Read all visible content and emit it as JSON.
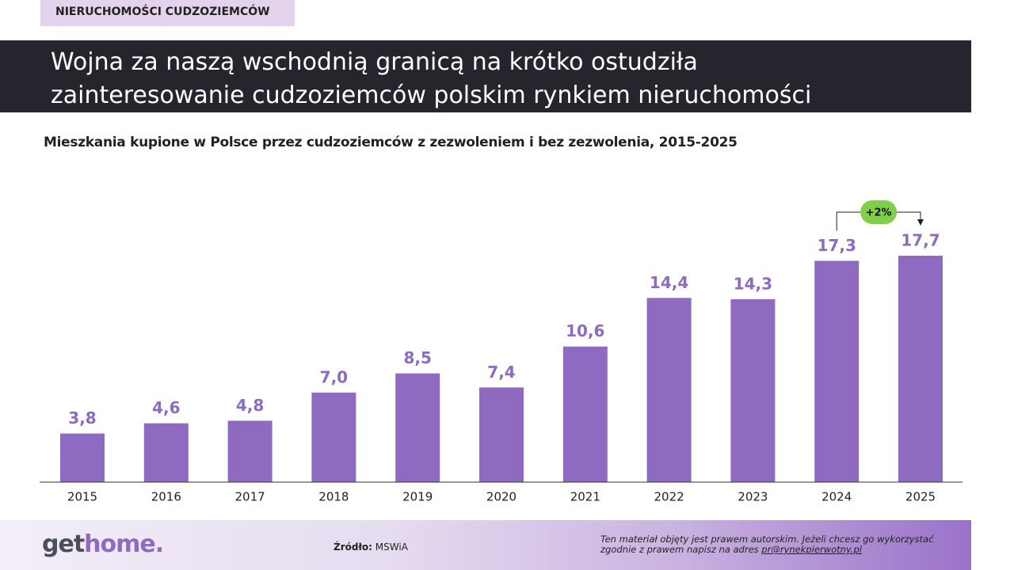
{
  "header": {
    "tag": "NIERUCHOMOŚCI CUDZOZIEMCÓW",
    "title_lines": [
      "Wojna za naszą wschodnią granicą na krótko ostudziła",
      "zainteresowanie cudzoziemców polskim rynkiem nieruchomości"
    ]
  },
  "chart_data": {
    "type": "bar",
    "title": "Mieszkania kupione w Polsce przez cudzoziemców z zezwoleniem i bez zezwolenia, 2015-2025",
    "categories": [
      "2015",
      "2016",
      "2017",
      "2018",
      "2019",
      "2020",
      "2021",
      "2022",
      "2023",
      "2024",
      "2025"
    ],
    "values": [
      3.8,
      4.6,
      4.8,
      7.0,
      8.5,
      7.4,
      10.6,
      14.4,
      14.3,
      17.3,
      17.7
    ],
    "value_labels": [
      "3,8",
      "4,6",
      "4,8",
      "7,0",
      "8,5",
      "7,4",
      "10,6",
      "14,4",
      "14,3",
      "17,3",
      "17,7"
    ],
    "color": "#8e6bc1",
    "annotation": "+2%"
  },
  "footer": {
    "logo_parts": [
      "get",
      "home."
    ],
    "source_label": "Źródło:",
    "source": "MSWiA",
    "notice_lines": [
      "Ten materiał objęty jest prawem autorskim. Jeżeli chcesz go wykorzystać",
      "zgodnie z prawem napisz na adres"
    ],
    "notice_email": "pr@rynekpierwotny.pl"
  }
}
